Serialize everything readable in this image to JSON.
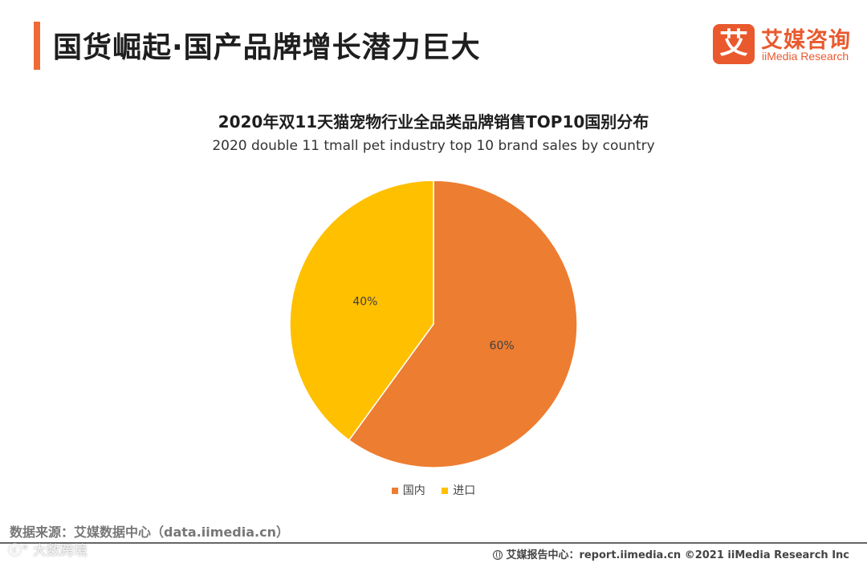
{
  "header": {
    "title": "国货崛起·国产品牌增长潜力巨大",
    "accent_color": "#f06a35"
  },
  "logo": {
    "mark": "艾",
    "name_cn": "艾媒咨询",
    "name_en": "iiMedia Research",
    "color": "#e9592d"
  },
  "chart_data": {
    "type": "pie",
    "title": "2020年双11天猫宠物行业全品类品牌销售TOP10国别分布",
    "subtitle": "2020 double 11 tmall pet industry top 10 brand sales by country",
    "start_angle_deg": 0,
    "direction": "clockwise",
    "slices": [
      {
        "label": "国内",
        "value": 60,
        "display": "60%",
        "color": "#ed7d31"
      },
      {
        "label": "进口",
        "value": 40,
        "display": "40%",
        "color": "#ffc000"
      }
    ],
    "legend_position": "bottom"
  },
  "source": {
    "text": "数据来源：艾媒数据中心（data.iimedia.cn）"
  },
  "footer": {
    "icon": "globe-icon",
    "text": "艾媒报告中心：report.iimedia.cn ©2021  iiMedia Research  Inc"
  },
  "watermark": {
    "text": "ⓒ° 大数跨境"
  }
}
